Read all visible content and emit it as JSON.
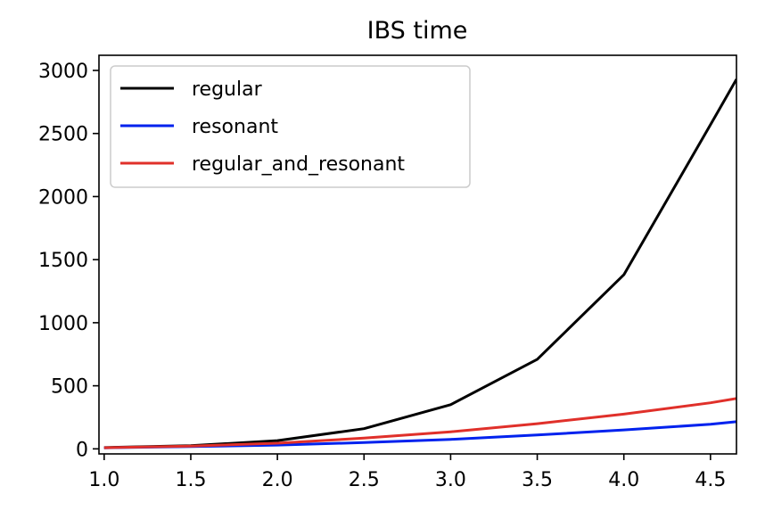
{
  "chart_data": {
    "type": "line",
    "title": "IBS time",
    "xlabel": "",
    "ylabel": "",
    "xlim": [
      0.97,
      4.65
    ],
    "ylim": [
      -40,
      3120
    ],
    "xticks": [
      1.0,
      1.5,
      2.0,
      2.5,
      3.0,
      3.5,
      4.0,
      4.5
    ],
    "xtick_labels": [
      "1.0",
      "1.5",
      "2.0",
      "2.5",
      "3.0",
      "3.5",
      "4.0",
      "4.5"
    ],
    "yticks": [
      0,
      500,
      1000,
      1500,
      2000,
      2500,
      3000
    ],
    "ytick_labels": [
      "0",
      "500",
      "1000",
      "1500",
      "2000",
      "2500",
      "3000"
    ],
    "grid": false,
    "legend_position": "top-left",
    "x": [
      1.0,
      1.5,
      2.0,
      2.5,
      3.0,
      3.5,
      4.0,
      4.5,
      4.65
    ],
    "series": [
      {
        "name": "regular",
        "color": "#000000",
        "values": [
          10,
          25,
          65,
          160,
          350,
          710,
          1380,
          2570,
          2930
        ]
      },
      {
        "name": "resonant",
        "color": "#0022ee",
        "values": [
          8,
          18,
          30,
          50,
          75,
          110,
          150,
          195,
          215
        ]
      },
      {
        "name": "regular_and_resonant",
        "color": "#e0302a",
        "values": [
          9,
          22,
          45,
          85,
          135,
          200,
          275,
          365,
          400
        ]
      }
    ]
  }
}
